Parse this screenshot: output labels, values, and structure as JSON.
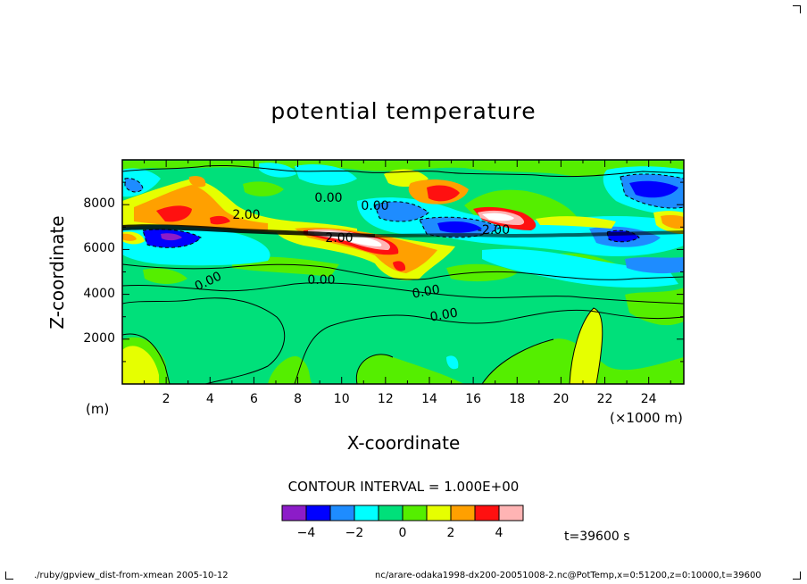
{
  "chart_data": {
    "type": "heatmap",
    "title": "potential temperature",
    "xlabel": "X-coordinate",
    "ylabel": "Z-coordinate",
    "x_unit_left": "(m)",
    "x_unit_right": "(×1000 m)",
    "xlim": [
      0,
      25.6
    ],
    "ylim": [
      0,
      10000
    ],
    "x_ticks": [
      "2",
      "4",
      "6",
      "8",
      "10",
      "12",
      "14",
      "16",
      "18",
      "20",
      "22",
      "24"
    ],
    "y_ticks": [
      "2000",
      "4000",
      "6000",
      "8000"
    ],
    "contour_labels": [
      "0.00",
      "0.00",
      "0.00",
      "0.00",
      "0.00",
      "0.00",
      "-2.00",
      "2.00",
      "2.00"
    ],
    "contour_interval": "CONTOUR INTERVAL = 1.000E+00",
    "colorbar": {
      "levels": [
        -5,
        -4,
        -3,
        -2,
        -1,
        0,
        1,
        2,
        3,
        4,
        5
      ],
      "tick_labels": [
        "−4",
        "−2",
        "0",
        "2",
        "4"
      ],
      "colors": [
        "#8c1cc8",
        "#0000ff",
        "#1e8cff",
        "#00ffff",
        "#00e07a",
        "#55ee00",
        "#e6ff00",
        "#ffa000",
        "#ff1010",
        "#ffb4b4"
      ]
    },
    "time": "t=39600 s"
  },
  "footer": {
    "left": "./ruby/gpview_dist-from-xmean   2005-10-12",
    "right": "nc/arare-odaka1998-dx200-20051008-2.nc@PotTemp,x=0:51200,z=0:10000,t=39600"
  }
}
